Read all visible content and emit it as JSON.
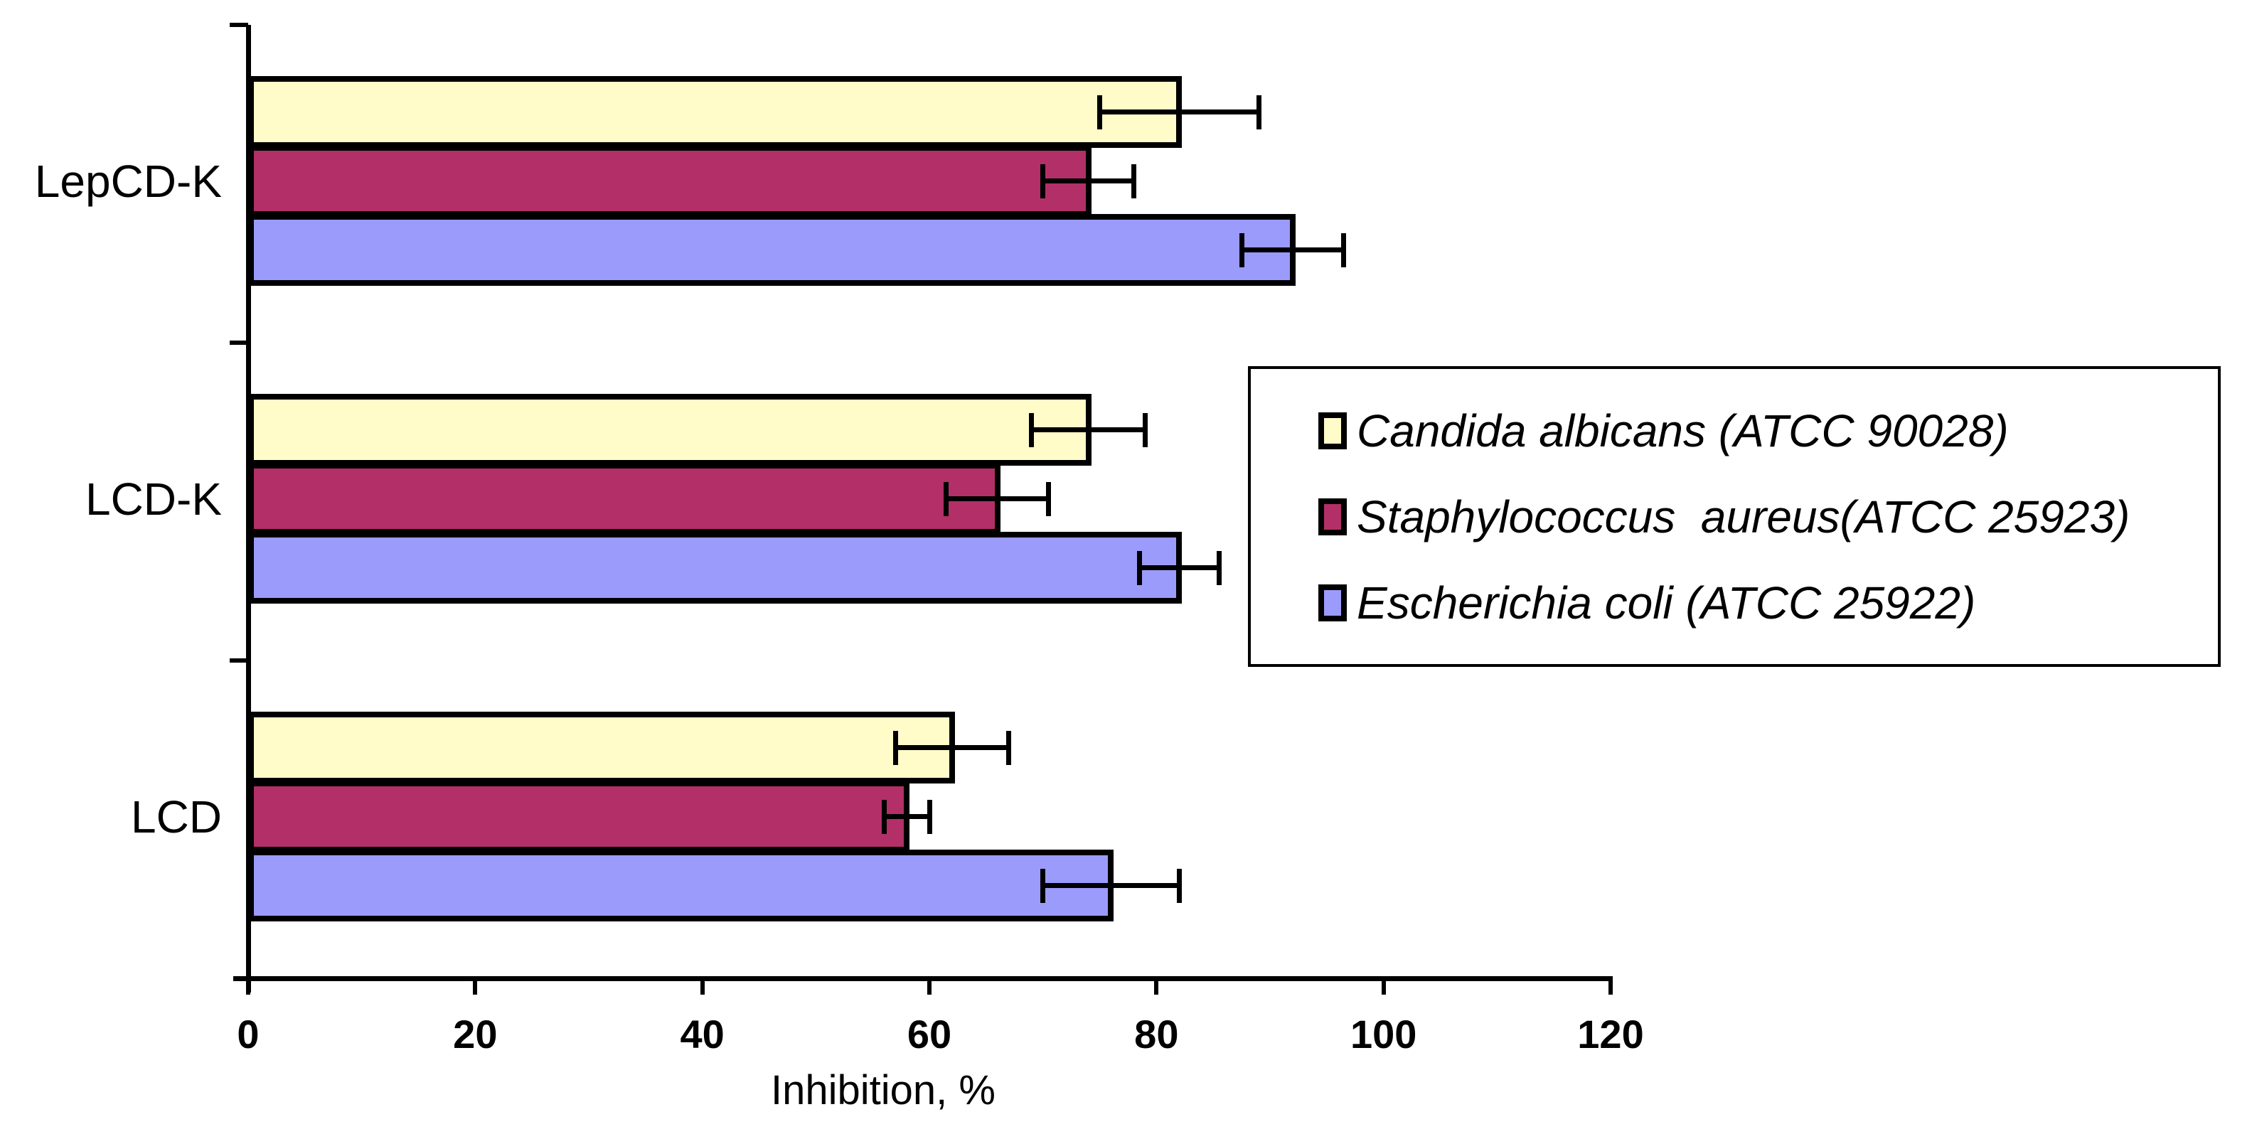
{
  "chart_data": {
    "type": "bar",
    "orientation": "horizontal",
    "xlabel": "Inhibition, %",
    "xlim": [
      0,
      120
    ],
    "xticks": [
      0,
      20,
      40,
      60,
      80,
      100,
      120
    ],
    "categories": [
      "LepCD-K",
      "LCD-K",
      "LCD"
    ],
    "series": [
      {
        "name": "Candida albicans (ATCC 90028)",
        "color": "#FFFCC9",
        "values": [
          82,
          74,
          62
        ],
        "errors": [
          7,
          5,
          5
        ]
      },
      {
        "name": "Staphylococcus  aureus(ATCC 25923)",
        "color": "#B23067",
        "values": [
          74,
          66,
          58
        ],
        "errors": [
          4,
          4.5,
          2
        ]
      },
      {
        "name": "Escherichia coli (ATCC 25922)",
        "color": "#9B9BFB",
        "values": [
          92,
          82,
          76
        ],
        "errors": [
          4.5,
          3.5,
          6
        ]
      }
    ],
    "error_bars": true,
    "grid": false,
    "legend_position": "right",
    "bar_outline_color": "#000000",
    "background": "#FFFFFF"
  }
}
